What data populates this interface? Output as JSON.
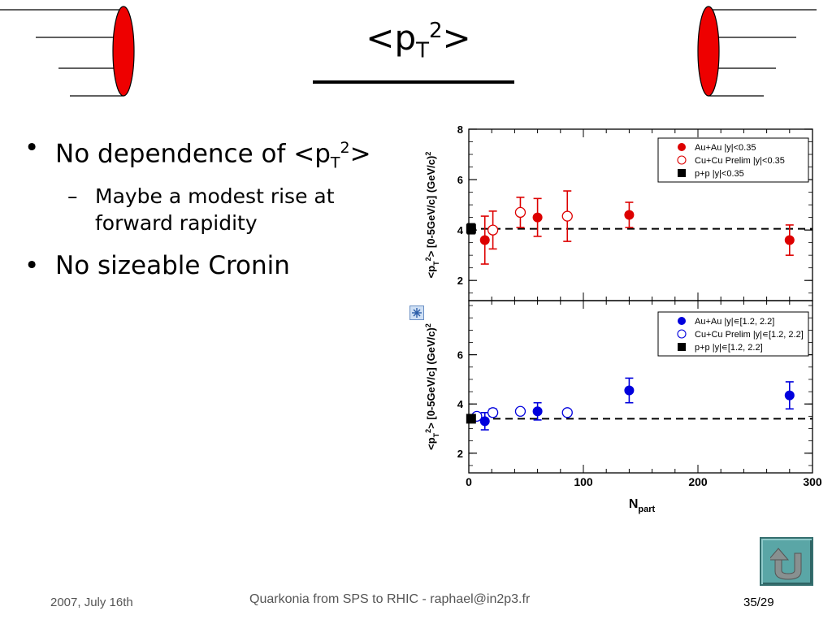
{
  "title": {
    "main": "<p",
    "sub": "T",
    "sup": "2",
    "tail": ">"
  },
  "bullets": [
    {
      "text": "No dependence of <p",
      "sub": "T",
      "sup": "2",
      "tail": ">",
      "subitems": [
        {
          "line1": "Maybe a modest rise at",
          "line2": "forward rapidity"
        }
      ]
    },
    {
      "text": "No sizeable Cronin"
    }
  ],
  "footer": {
    "date": "2007, July 16th",
    "center": "Quarkonia from SPS to RHIC - raphael@in2p3.fr",
    "page": "35/29"
  },
  "icons": {
    "nav": "up-return-icon",
    "note": "snowflake-icon",
    "decor_left": "red-disc-left-icon",
    "decor_right": "red-disc-right-icon"
  },
  "chart_data": {
    "type": "scatter",
    "xlabel": "N",
    "xlabel_sub": "part",
    "xlim": [
      0,
      300
    ],
    "xticks": [
      "0",
      "100",
      "200",
      "300"
    ],
    "ylabel": "<p",
    "ylabel_sub": "T",
    "ylabel_sup": "2",
    "ylabel_tail": "> [0-5GeV/c] (GeV/c)",
    "ylabel_unit_sup": "2",
    "panels": [
      {
        "ylim": [
          1.2,
          8
        ],
        "yticks": [
          "2",
          "4",
          "6",
          "8"
        ],
        "reference_line": 4.05,
        "series": [
          {
            "name": "Au+Au |y|<0.35",
            "color": "#dd0000",
            "marker": "filled-circle",
            "points": [
              {
                "x": 14,
                "y": 3.6,
                "err": 0.95
              },
              {
                "x": 60,
                "y": 4.5,
                "err": 0.75
              },
              {
                "x": 140,
                "y": 4.6,
                "err": 0.5
              },
              {
                "x": 280,
                "y": 3.6,
                "err": 0.6
              }
            ]
          },
          {
            "name": "Cu+Cu Prelim |y|<0.35",
            "color": "#dd0000",
            "marker": "open-circle",
            "points": [
              {
                "x": 21,
                "y": 4.0,
                "err": 0.75
              },
              {
                "x": 45,
                "y": 4.7,
                "err": 0.6
              },
              {
                "x": 86,
                "y": 4.55,
                "err": 1.0
              }
            ]
          },
          {
            "name": "p+p |y|<0.35",
            "color": "#000000",
            "marker": "filled-square",
            "points": [
              {
                "x": 2,
                "y": 4.05,
                "err": 0.2
              }
            ]
          }
        ]
      },
      {
        "ylim": [
          1.2,
          8.2
        ],
        "yticks": [
          "2",
          "4",
          "6"
        ],
        "reference_line": 3.4,
        "series": [
          {
            "name": "Au+Au |y|∊[1.2, 2.2]",
            "color": "#0000dd",
            "marker": "filled-circle",
            "points": [
              {
                "x": 14,
                "y": 3.3,
                "err": 0.35
              },
              {
                "x": 60,
                "y": 3.7,
                "err": 0.35
              },
              {
                "x": 140,
                "y": 4.55,
                "err": 0.5
              },
              {
                "x": 280,
                "y": 4.35,
                "err": 0.55
              }
            ]
          },
          {
            "name": "Cu+Cu Prelim |y|∊[1.2, 2.2]",
            "color": "#0000dd",
            "marker": "open-circle",
            "points": [
              {
                "x": 7,
                "y": 3.5,
                "err": 0.1
              },
              {
                "x": 21,
                "y": 3.65,
                "err": 0.15
              },
              {
                "x": 45,
                "y": 3.7,
                "err": 0.12
              },
              {
                "x": 86,
                "y": 3.65,
                "err": 0.12
              }
            ]
          },
          {
            "name": "p+p |y|∊[1.2, 2.2]",
            "color": "#000000",
            "marker": "filled-square",
            "points": [
              {
                "x": 2,
                "y": 3.4,
                "err": 0.1
              }
            ]
          }
        ]
      }
    ]
  }
}
